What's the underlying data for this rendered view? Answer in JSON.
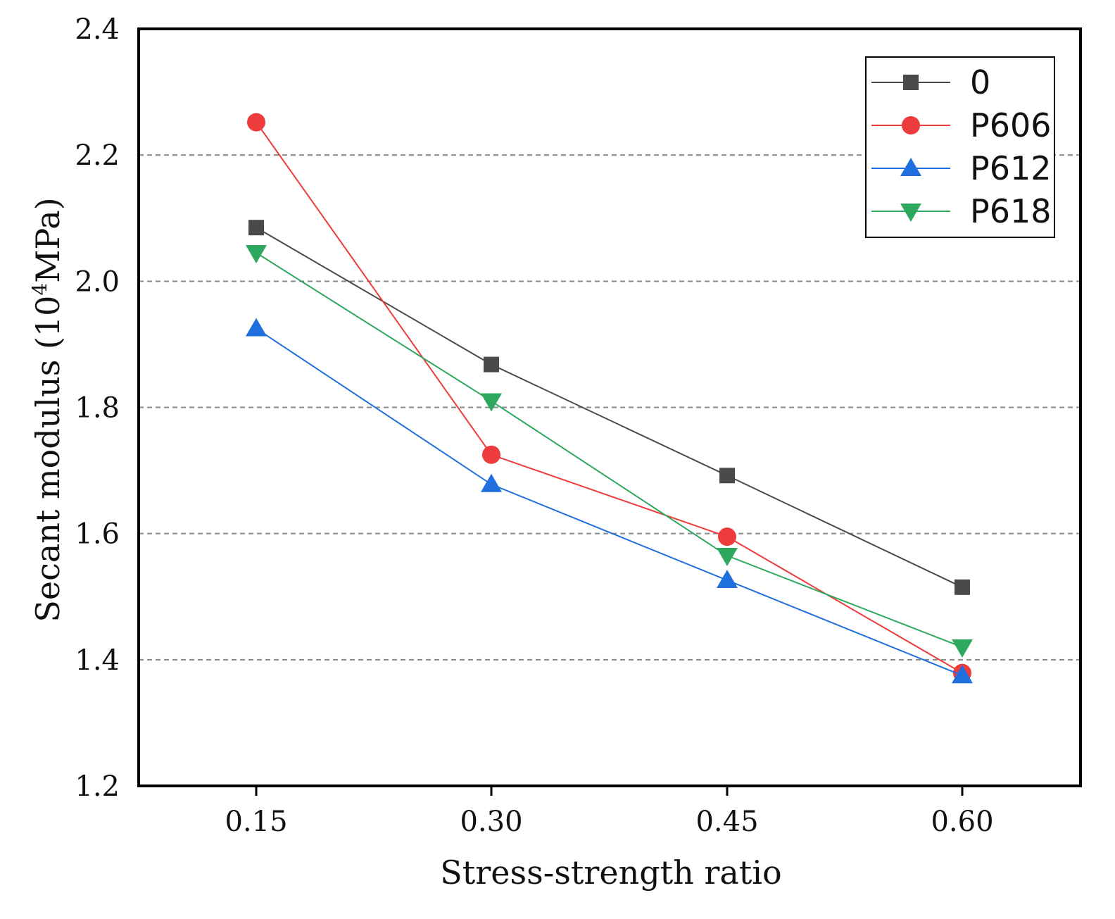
{
  "chart_data": {
    "type": "line",
    "xlabel": "Stress-strength ratio",
    "ylabel_prefix": "Secant modulus (10",
    "ylabel_exponent": "4",
    "ylabel_suffix": "MPa)",
    "categories": [
      "0.15",
      "0.30",
      "0.45",
      "0.60"
    ],
    "ylim": [
      1.2,
      2.4
    ],
    "yticks": [
      "1.2",
      "1.4",
      "1.6",
      "1.8",
      "2.0",
      "2.2",
      "2.4"
    ],
    "ytick_values": [
      1.2,
      1.4,
      1.6,
      1.8,
      2.0,
      2.2,
      2.4
    ],
    "grid": "horizontal dashed",
    "legend_position": "top-right",
    "series": [
      {
        "name": "0",
        "color": "#4a4a4a",
        "marker": "square",
        "values": [
          2.085,
          1.868,
          1.692,
          1.515
        ]
      },
      {
        "name": "P606",
        "color": "#ee3b3b",
        "marker": "circle",
        "values": [
          2.252,
          1.725,
          1.595,
          1.379
        ]
      },
      {
        "name": "P612",
        "color": "#1f6fde",
        "marker": "triangle-up",
        "values": [
          1.925,
          1.678,
          1.526,
          1.375
        ]
      },
      {
        "name": "P618",
        "color": "#2fa85f",
        "marker": "triangle-down",
        "values": [
          2.045,
          1.81,
          1.565,
          1.42
        ]
      }
    ]
  }
}
